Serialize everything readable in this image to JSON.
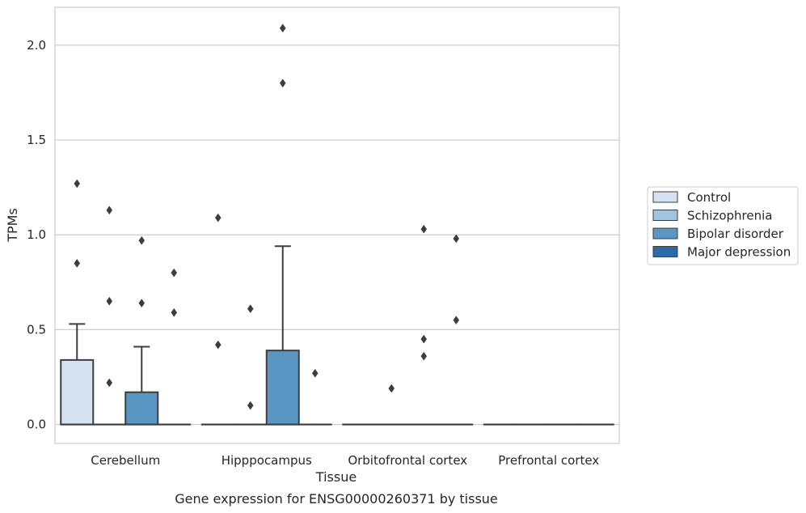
{
  "chart_data": {
    "type": "box",
    "title": "",
    "caption": "Gene expression for ENSG00000260371 by tissue",
    "xlabel": "Tissue",
    "ylabel": "TPMs",
    "ylim": [
      -0.1,
      2.2
    ],
    "yticks": [
      0.0,
      0.5,
      1.0,
      1.5,
      2.0
    ],
    "ytick_labels": [
      "0.0",
      "0.5",
      "1.0",
      "1.5",
      "2.0"
    ],
    "grid": "horizontal",
    "legend_position": "right",
    "categories": [
      "Cerebellum",
      "Hipppocampus",
      "Orbitofrontal cortex",
      "Prefrontal cortex"
    ],
    "series": [
      {
        "name": "Control",
        "color": "#d4e2f1",
        "boxes": [
          {
            "q1": 0.0,
            "median": 0.0,
            "q3": 0.34,
            "whisker_low": 0.0,
            "whisker_high": 0.53,
            "outliers": [
              0.85,
              1.27
            ]
          },
          {
            "q1": 0.0,
            "median": 0.0,
            "q3": 0.0,
            "whisker_low": 0.0,
            "whisker_high": 0.0,
            "outliers": [
              0.42,
              1.09
            ]
          },
          {
            "q1": 0.0,
            "median": 0.0,
            "q3": 0.0,
            "whisker_low": 0.0,
            "whisker_high": 0.0,
            "outliers": []
          },
          {
            "q1": 0.0,
            "median": 0.0,
            "q3": 0.0,
            "whisker_low": 0.0,
            "whisker_high": 0.0,
            "outliers": []
          }
        ]
      },
      {
        "name": "Schizophrenia",
        "color": "#9fc6de",
        "boxes": [
          {
            "q1": 0.0,
            "median": 0.0,
            "q3": 0.0,
            "whisker_low": 0.0,
            "whisker_high": 0.0,
            "outliers": [
              0.22,
              0.65,
              1.13
            ]
          },
          {
            "q1": 0.0,
            "median": 0.0,
            "q3": 0.0,
            "whisker_low": 0.0,
            "whisker_high": 0.0,
            "outliers": [
              0.1,
              0.61
            ]
          },
          {
            "q1": 0.0,
            "median": 0.0,
            "q3": 0.0,
            "whisker_low": 0.0,
            "whisker_high": 0.0,
            "outliers": [
              0.19
            ]
          },
          {
            "q1": 0.0,
            "median": 0.0,
            "q3": 0.0,
            "whisker_low": 0.0,
            "whisker_high": 0.0,
            "outliers": []
          }
        ]
      },
      {
        "name": "Bipolar disorder",
        "color": "#5996c4",
        "boxes": [
          {
            "q1": 0.0,
            "median": 0.0,
            "q3": 0.17,
            "whisker_low": 0.0,
            "whisker_high": 0.41,
            "outliers": [
              0.64,
              0.97
            ]
          },
          {
            "q1": 0.0,
            "median": 0.0,
            "q3": 0.39,
            "whisker_low": 0.0,
            "whisker_high": 0.94,
            "outliers": [
              1.8,
              2.09
            ]
          },
          {
            "q1": 0.0,
            "median": 0.0,
            "q3": 0.0,
            "whisker_low": 0.0,
            "whisker_high": 0.0,
            "outliers": [
              0.36,
              0.45,
              1.03
            ]
          },
          {
            "q1": 0.0,
            "median": 0.0,
            "q3": 0.0,
            "whisker_low": 0.0,
            "whisker_high": 0.0,
            "outliers": []
          }
        ]
      },
      {
        "name": "Major depression",
        "color": "#2a6aa8",
        "boxes": [
          {
            "q1": 0.0,
            "median": 0.0,
            "q3": 0.0,
            "whisker_low": 0.0,
            "whisker_high": 0.0,
            "outliers": [
              0.59,
              0.8
            ]
          },
          {
            "q1": 0.0,
            "median": 0.0,
            "q3": 0.0,
            "whisker_low": 0.0,
            "whisker_high": 0.0,
            "outliers": [
              0.27
            ]
          },
          {
            "q1": 0.0,
            "median": 0.0,
            "q3": 0.0,
            "whisker_low": 0.0,
            "whisker_high": 0.0,
            "outliers": [
              0.55,
              0.98
            ]
          },
          {
            "q1": 0.0,
            "median": 0.0,
            "q3": 0.0,
            "whisker_low": 0.0,
            "whisker_high": 0.0,
            "outliers": []
          }
        ]
      }
    ]
  }
}
